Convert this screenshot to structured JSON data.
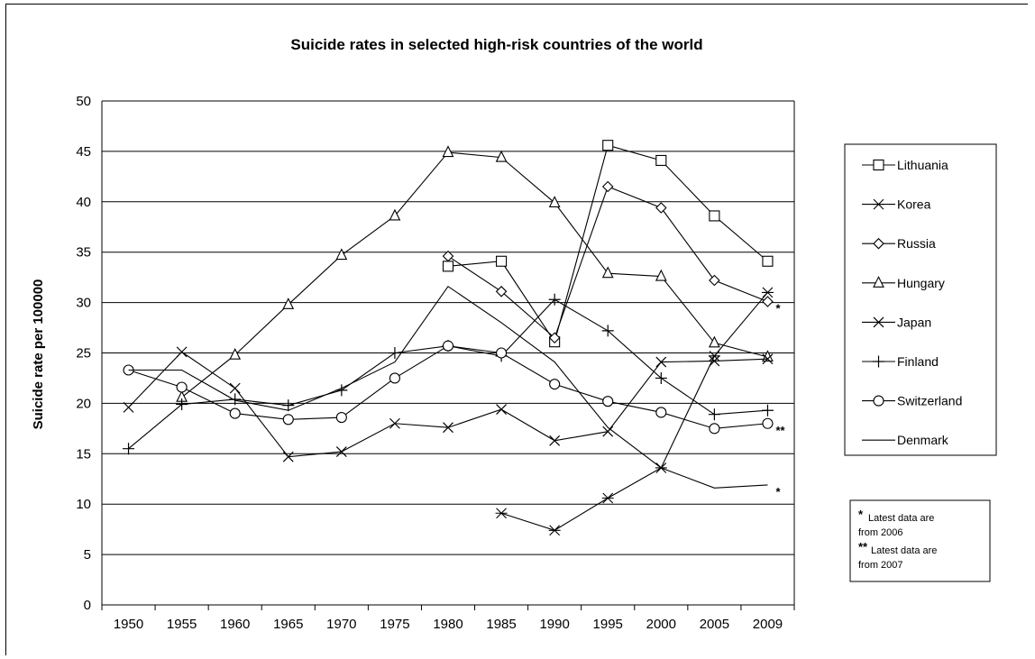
{
  "chart_data": {
    "type": "line",
    "title": "Suicide rates in selected high-risk countries of the world",
    "xlabel": "",
    "ylabel": "Suicide rate per 100000",
    "categories": [
      "1950",
      "1955",
      "1960",
      "1965",
      "1970",
      "1975",
      "1980",
      "1985",
      "1990",
      "1995",
      "2000",
      "2005",
      "2009"
    ],
    "ylim": [
      0,
      50
    ],
    "yticks": [
      0,
      5,
      10,
      15,
      20,
      25,
      30,
      35,
      40,
      45,
      50
    ],
    "grid": "horizontal",
    "legend_position": "right",
    "series": [
      {
        "name": "Lithuania",
        "marker": "square",
        "values": [
          null,
          null,
          null,
          null,
          null,
          null,
          33.6,
          34.1,
          26.1,
          45.6,
          44.1,
          38.6,
          34.1
        ]
      },
      {
        "name": "Korea",
        "marker": "asterisk",
        "values": [
          null,
          null,
          null,
          null,
          null,
          null,
          null,
          9.1,
          7.4,
          10.6,
          13.6,
          24.7,
          31.0
        ]
      },
      {
        "name": "Russia",
        "marker": "diamond",
        "values": [
          null,
          null,
          null,
          null,
          null,
          null,
          34.6,
          31.1,
          26.5,
          41.5,
          39.4,
          32.2,
          30.1
        ]
      },
      {
        "name": "Hungary",
        "marker": "triangle",
        "values": [
          null,
          20.6,
          24.8,
          29.8,
          34.7,
          38.6,
          44.9,
          44.4,
          39.9,
          32.9,
          32.6,
          26.0,
          24.6
        ]
      },
      {
        "name": "Japan",
        "marker": "x",
        "values": [
          19.6,
          25.1,
          21.5,
          14.7,
          15.2,
          18.0,
          17.6,
          19.4,
          16.3,
          17.2,
          24.1,
          24.2,
          24.4
        ]
      },
      {
        "name": "Finland",
        "marker": "plus",
        "values": [
          15.5,
          19.9,
          20.4,
          19.8,
          21.3,
          25.0,
          25.7,
          24.7,
          30.3,
          27.2,
          22.5,
          18.9,
          19.3
        ]
      },
      {
        "name": "Switzerland",
        "marker": "circle",
        "values": [
          23.3,
          21.6,
          19.0,
          18.4,
          18.6,
          22.5,
          25.7,
          25.0,
          21.9,
          20.2,
          19.1,
          17.5,
          18.0
        ]
      },
      {
        "name": "Denmark",
        "marker": "none",
        "values": [
          23.3,
          23.3,
          20.3,
          19.3,
          21.5,
          24.1,
          31.6,
          28.0,
          24.1,
          17.6,
          13.6,
          11.6,
          11.9
        ]
      }
    ],
    "annotations": [
      {
        "text": "*",
        "series": "Russia"
      },
      {
        "text": "**",
        "series": "Switzerland"
      },
      {
        "text": "*",
        "series": "Denmark"
      }
    ],
    "note": {
      "line1_star": "*",
      "line1": "Latest data are",
      "line2": "from  2006",
      "line3_star": "**",
      "line3": "Latest data are",
      "line4": "from 2007"
    }
  }
}
